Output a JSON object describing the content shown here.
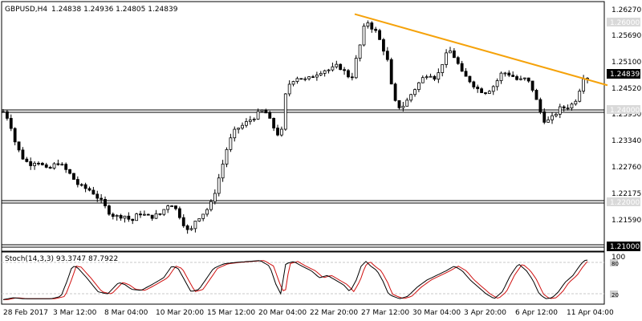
{
  "header": {
    "symbol_label": "GBPUSD,H4",
    "ohlc_label": "1.24838 1.24936 1.24805 1.24839"
  },
  "stoch": {
    "label": "Stoch(14,3,3) 93.3747 87.7922"
  },
  "price_scale": [
    "1.26270",
    "1.25690",
    "1.25100",
    "1.24520",
    "1.23950",
    "1.23340",
    "1.22760",
    "1.22175",
    "1.21590"
  ],
  "stoch_scale": [
    "100",
    "80",
    "20"
  ],
  "tags": {
    "current_price": "1.24839",
    "level_1_26": "1.26000",
    "level_1_24": "1.24000",
    "level_1_22": "1.22000",
    "level_1_21": "1.21000"
  },
  "time_axis": [
    "28 Feb 2017",
    "3 Mar 12:00",
    "8 Mar 04:00",
    "10 Mar 20:00",
    "15 Mar 12:00",
    "20 Mar 04:00",
    "22 Mar 20:00",
    "27 Mar 12:00",
    "30 Mar 04:00",
    "3 Apr 20:00",
    "6 Apr 12:00",
    "11 Apr 04:00"
  ],
  "colors": {
    "candle": "#000000",
    "trendline": "#f5a20a",
    "stoch_main": "#000000",
    "stoch_signal": "#d01010",
    "levels": "#000000"
  },
  "chart_data": {
    "type": "candlestick",
    "symbol": "GBPUSD",
    "timeframe": "H4",
    "ylim": [
      1.21,
      1.265
    ],
    "horizontal_levels": [
      1.26,
      1.24,
      1.22,
      1.21
    ],
    "trendline": {
      "from": {
        "time": "23 Mar 2017",
        "price": 1.2627
      },
      "to": {
        "time": "11 Apr 04:00",
        "price": 1.2465
      }
    },
    "price_path": [
      [
        0,
        1.2405
      ],
      [
        8,
        1.2385
      ],
      [
        14,
        1.234
      ],
      [
        22,
        1.2305
      ],
      [
        32,
        1.2285
      ],
      [
        42,
        1.2295
      ],
      [
        55,
        1.227
      ],
      [
        68,
        1.229
      ],
      [
        82,
        1.2265
      ],
      [
        95,
        1.2235
      ],
      [
        110,
        1.2225
      ],
      [
        120,
        1.2205
      ],
      [
        130,
        1.218
      ],
      [
        140,
        1.2165
      ],
      [
        150,
        1.217
      ],
      [
        160,
        1.2155
      ],
      [
        170,
        1.2175
      ],
      [
        180,
        1.2165
      ],
      [
        195,
        1.217
      ],
      [
        208,
        1.22
      ],
      [
        218,
        1.2175
      ],
      [
        225,
        1.215
      ],
      [
        232,
        1.2125
      ],
      [
        240,
        1.216
      ],
      [
        250,
        1.2175
      ],
      [
        258,
        1.219
      ],
      [
        265,
        1.223
      ],
      [
        272,
        1.2275
      ],
      [
        280,
        1.233
      ],
      [
        290,
        1.2365
      ],
      [
        300,
        1.2375
      ],
      [
        310,
        1.239
      ],
      [
        318,
        1.24
      ],
      [
        325,
        1.241
      ],
      [
        332,
        1.2385
      ],
      [
        340,
        1.236
      ],
      [
        346,
        1.2345
      ],
      [
        352,
        1.2445
      ],
      [
        358,
        1.2475
      ],
      [
        368,
        1.2485
      ],
      [
        378,
        1.2475
      ],
      [
        388,
        1.249
      ],
      [
        398,
        1.25
      ],
      [
        408,
        1.25
      ],
      [
        418,
        1.251
      ],
      [
        428,
        1.249
      ],
      [
        434,
        1.248
      ],
      [
        440,
        1.2525
      ],
      [
        446,
        1.2565
      ],
      [
        452,
        1.2615
      ],
      [
        458,
        1.26
      ],
      [
        465,
        1.2585
      ],
      [
        472,
        1.2555
      ],
      [
        478,
        1.253
      ],
      [
        484,
        1.246
      ],
      [
        490,
        1.2415
      ],
      [
        500,
        1.242
      ],
      [
        510,
        1.245
      ],
      [
        520,
        1.2475
      ],
      [
        530,
        1.2495
      ],
      [
        540,
        1.248
      ],
      [
        548,
        1.252
      ],
      [
        556,
        1.2545
      ],
      [
        564,
        1.2525
      ],
      [
        572,
        1.249
      ],
      [
        582,
        1.2475
      ],
      [
        592,
        1.2455
      ],
      [
        602,
        1.245
      ],
      [
        612,
        1.2465
      ],
      [
        622,
        1.2495
      ],
      [
        632,
        1.249
      ],
      [
        642,
        1.2475
      ],
      [
        652,
        1.248
      ],
      [
        660,
        1.2455
      ],
      [
        668,
        1.241
      ],
      [
        676,
        1.238
      ],
      [
        684,
        1.239
      ],
      [
        692,
        1.241
      ],
      [
        700,
        1.2415
      ],
      [
        708,
        1.242
      ],
      [
        716,
        1.244
      ],
      [
        722,
        1.2485
      ],
      [
        728,
        1.2484
      ]
    ],
    "stoch_path": [
      [
        0,
        8
      ],
      [
        12,
        12
      ],
      [
        24,
        10
      ],
      [
        40,
        10
      ],
      [
        60,
        10
      ],
      [
        72,
        15
      ],
      [
        80,
        50
      ],
      [
        86,
        80
      ],
      [
        92,
        78
      ],
      [
        104,
        55
      ],
      [
        118,
        25
      ],
      [
        130,
        20
      ],
      [
        144,
        45
      ],
      [
        152,
        40
      ],
      [
        160,
        30
      ],
      [
        172,
        28
      ],
      [
        185,
        40
      ],
      [
        200,
        55
      ],
      [
        210,
        80
      ],
      [
        218,
        75
      ],
      [
        226,
        50
      ],
      [
        234,
        25
      ],
      [
        244,
        30
      ],
      [
        252,
        50
      ],
      [
        262,
        75
      ],
      [
        275,
        85
      ],
      [
        290,
        88
      ],
      [
        305,
        90
      ],
      [
        320,
        92
      ],
      [
        332,
        80
      ],
      [
        340,
        40
      ],
      [
        346,
        20
      ],
      [
        352,
        85
      ],
      [
        362,
        90
      ],
      [
        372,
        80
      ],
      [
        384,
        70
      ],
      [
        394,
        55
      ],
      [
        404,
        60
      ],
      [
        414,
        50
      ],
      [
        424,
        40
      ],
      [
        432,
        25
      ],
      [
        440,
        50
      ],
      [
        446,
        80
      ],
      [
        452,
        90
      ],
      [
        458,
        80
      ],
      [
        466,
        70
      ],
      [
        474,
        45
      ],
      [
        480,
        20
      ],
      [
        486,
        15
      ],
      [
        494,
        10
      ],
      [
        504,
        15
      ],
      [
        516,
        35
      ],
      [
        528,
        50
      ],
      [
        540,
        60
      ],
      [
        552,
        70
      ],
      [
        562,
        80
      ],
      [
        572,
        70
      ],
      [
        582,
        50
      ],
      [
        592,
        35
      ],
      [
        602,
        20
      ],
      [
        612,
        10
      ],
      [
        622,
        25
      ],
      [
        632,
        60
      ],
      [
        642,
        85
      ],
      [
        652,
        70
      ],
      [
        660,
        50
      ],
      [
        668,
        20
      ],
      [
        676,
        10
      ],
      [
        684,
        12
      ],
      [
        692,
        25
      ],
      [
        700,
        45
      ],
      [
        710,
        60
      ],
      [
        718,
        80
      ],
      [
        724,
        92
      ],
      [
        728,
        93
      ]
    ],
    "stoch_values": {
      "main": 93.3747,
      "signal": 87.7922
    }
  }
}
